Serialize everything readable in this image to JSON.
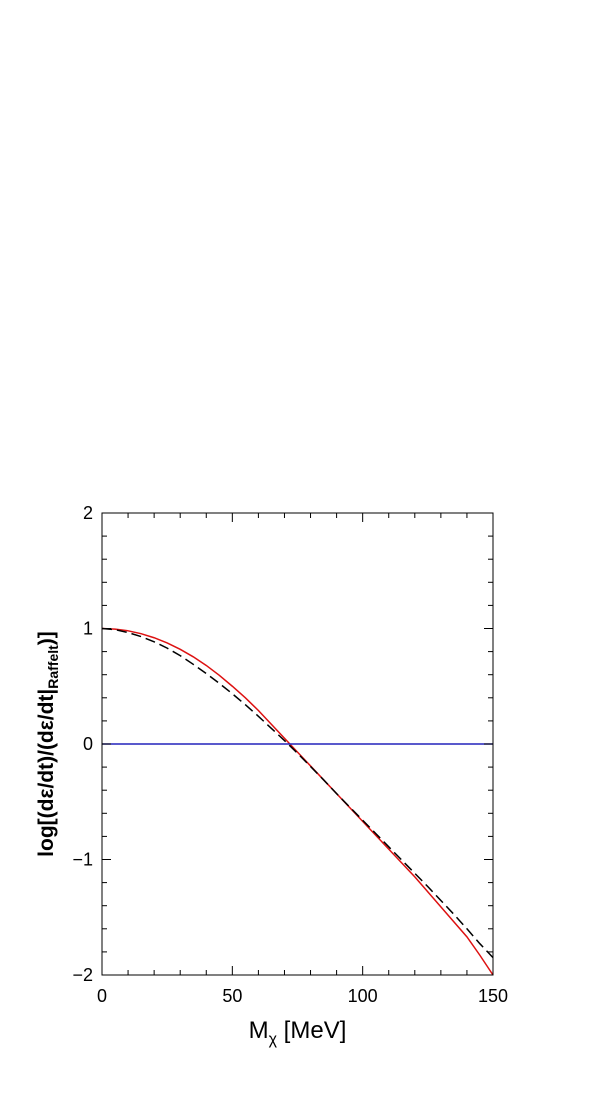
{
  "chart_data": {
    "type": "line",
    "xlabel": {
      "main": "M",
      "sub": "χ",
      "rest": " [MeV]"
    },
    "ylabel": {
      "main": "log[(dε/dt)/(dε/dt|",
      "sub": "Raffelt",
      "rest": ")]"
    },
    "xlim": [
      0,
      150
    ],
    "ylim": [
      -2,
      2
    ],
    "x_ticks": [
      0,
      50,
      100,
      150
    ],
    "y_ticks": [
      -2,
      -1,
      0,
      1,
      2
    ],
    "x_tick_labels": [
      "0",
      "50",
      "100",
      "150"
    ],
    "y_tick_labels": [
      "−2",
      "−1",
      "0",
      "1",
      "2"
    ],
    "grid": false,
    "series": [
      {
        "color": "#dd1111",
        "style": "solid",
        "x": [
          0,
          5,
          10,
          15,
          20,
          25,
          30,
          35,
          40,
          45,
          50,
          55,
          60,
          65,
          70,
          75,
          80,
          85,
          90,
          95,
          100,
          105,
          110,
          115,
          120,
          125,
          130,
          135,
          140,
          145,
          150
        ],
        "y": [
          1.0,
          0.995,
          0.98,
          0.955,
          0.92,
          0.875,
          0.82,
          0.755,
          0.68,
          0.595,
          0.5,
          0.4,
          0.29,
          0.17,
          0.05,
          -0.07,
          -0.19,
          -0.31,
          -0.43,
          -0.55,
          -0.67,
          -0.79,
          -0.91,
          -1.03,
          -1.15,
          -1.28,
          -1.41,
          -1.54,
          -1.67,
          -1.83,
          -2.0
        ]
      },
      {
        "color": "#000000",
        "style": "dashed",
        "x": [
          0,
          5,
          10,
          15,
          20,
          25,
          30,
          35,
          40,
          45,
          50,
          55,
          60,
          65,
          70,
          75,
          80,
          85,
          90,
          95,
          100,
          105,
          110,
          115,
          120,
          125,
          130,
          135,
          140,
          145,
          150
        ],
        "y": [
          1.0,
          0.99,
          0.965,
          0.93,
          0.885,
          0.83,
          0.765,
          0.69,
          0.61,
          0.525,
          0.435,
          0.34,
          0.24,
          0.135,
          0.03,
          -0.08,
          -0.195,
          -0.31,
          -0.43,
          -0.545,
          -0.66,
          -0.775,
          -0.89,
          -1.005,
          -1.12,
          -1.235,
          -1.355,
          -1.475,
          -1.6,
          -1.73,
          -1.85
        ]
      },
      {
        "color": "#2222bb",
        "style": "solid",
        "x": [
          0,
          150
        ],
        "y": [
          0,
          0
        ]
      }
    ]
  }
}
